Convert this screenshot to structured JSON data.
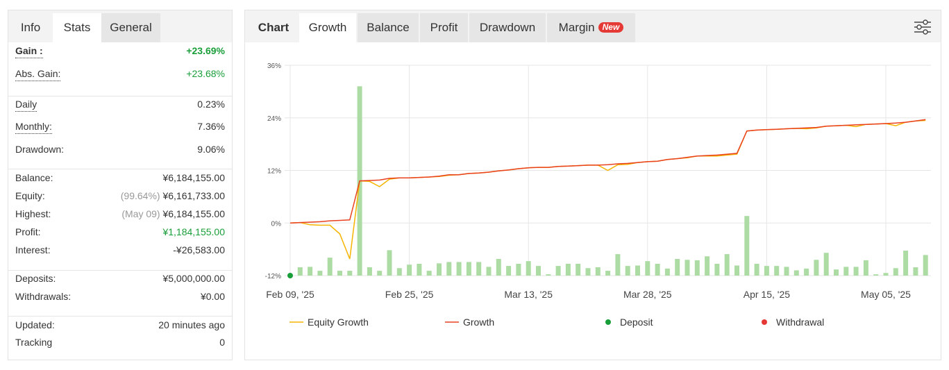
{
  "left_panel": {
    "tabs": [
      "Info",
      "Stats",
      "General"
    ],
    "groups": [
      [
        {
          "label": "Gain :",
          "value": "+23.69%",
          "color": "#1a9e3a"
        },
        {
          "label": "Abs. Gain:",
          "value": "+23.68%",
          "color": "#1a9e3a"
        }
      ],
      [
        {
          "label": "Daily",
          "value": "0.23%"
        },
        {
          "label": "Monthly:",
          "value": "7.36%"
        },
        {
          "label": "Drawdown:",
          "value": "9.06%"
        }
      ],
      [
        {
          "label": "Balance:",
          "value": "¥6,184,155.00"
        },
        {
          "label": "Equity:",
          "note": "(99.64%)",
          "value": "¥6,161,733.00"
        },
        {
          "label": "Highest:",
          "note": "(May 09)",
          "value": "¥6,184,155.00"
        },
        {
          "label": "Profit:",
          "value": "¥1,184,155.00",
          "color": "#1a9e3a"
        },
        {
          "label": "Interest:",
          "value": "-¥26,583.00"
        }
      ],
      [
        {
          "label": "Deposits:",
          "value": "¥5,000,000.00"
        },
        {
          "label": "Withdrawals:",
          "value": "¥0.00"
        }
      ],
      [
        {
          "label": "Updated:",
          "value": "20 minutes ago"
        },
        {
          "label": "Tracking",
          "value": "0"
        }
      ]
    ]
  },
  "right_panel": {
    "tabs": [
      "Chart",
      "Growth",
      "Balance",
      "Profit",
      "Drawdown",
      "Margin"
    ],
    "badge": "New"
  },
  "chart_data": {
    "type": "line",
    "categories": [
      "Feb 09, '25",
      null,
      null,
      null,
      null,
      null,
      null,
      null,
      null,
      null,
      null,
      null,
      "Feb 25, '25",
      null,
      null,
      null,
      null,
      null,
      null,
      null,
      null,
      null,
      null,
      null,
      "Mar 13, '25",
      null,
      null,
      null,
      null,
      null,
      null,
      null,
      null,
      null,
      null,
      null,
      "Mar 28, '25",
      null,
      null,
      null,
      null,
      null,
      null,
      null,
      null,
      null,
      null,
      null,
      "Apr 15, '25",
      null,
      null,
      null,
      null,
      null,
      null,
      null,
      null,
      null,
      null,
      null,
      "May 05, '25",
      null,
      null,
      null,
      null
    ],
    "ylim": [
      -12,
      36
    ],
    "yticks": [
      {
        "value": 36,
        "label": "36%"
      },
      {
        "value": 24,
        "label": "24%"
      },
      {
        "value": 12,
        "label": "12%"
      },
      {
        "value": 0,
        "label": "0%"
      },
      {
        "value": -12,
        "label": "-12%"
      }
    ],
    "grid": true,
    "series": [
      {
        "name": "Equity Growth",
        "color": "#f5b400",
        "values": [
          0.0,
          0.1,
          -0.4,
          -0.5,
          -0.5,
          -2.5,
          -8.2,
          9.6,
          9.5,
          8.3,
          10.0,
          10.3,
          10.3,
          10.4,
          10.5,
          10.6,
          10.9,
          11.0,
          11.3,
          11.4,
          11.6,
          11.9,
          12.1,
          12.4,
          12.6,
          12.7,
          12.7,
          12.9,
          13.0,
          13.1,
          13.2,
          13.2,
          12.0,
          13.3,
          13.4,
          13.8,
          14.0,
          14.1,
          14.5,
          14.7,
          14.9,
          15.3,
          15.3,
          15.3,
          15.5,
          15.7,
          21.0,
          21.2,
          21.3,
          21.4,
          21.5,
          21.6,
          21.5,
          21.7,
          22.1,
          22.2,
          22.3,
          22.0,
          22.5,
          22.6,
          22.7,
          22.2,
          23.0,
          23.3,
          23.4
        ]
      },
      {
        "name": "Growth",
        "color": "#e9411f",
        "values": [
          0.0,
          0.1,
          0.2,
          0.3,
          0.5,
          0.6,
          0.7,
          9.6,
          9.7,
          9.8,
          10.2,
          10.3,
          10.3,
          10.4,
          10.5,
          10.7,
          11.0,
          11.0,
          11.3,
          11.4,
          11.6,
          11.9,
          12.1,
          12.4,
          12.6,
          12.7,
          12.7,
          12.9,
          13.0,
          13.1,
          13.2,
          13.2,
          13.3,
          13.5,
          13.6,
          13.8,
          14.0,
          14.1,
          14.5,
          14.7,
          15.0,
          15.3,
          15.4,
          15.5,
          15.7,
          15.9,
          21.0,
          21.2,
          21.3,
          21.4,
          21.5,
          21.6,
          21.7,
          21.8,
          22.1,
          22.2,
          22.3,
          22.4,
          22.5,
          22.6,
          22.7,
          22.8,
          23.0,
          23.3,
          23.6
        ]
      }
    ],
    "bars": {
      "color": "#acdca4",
      "values": [
        null,
        -10.1,
        -10.0,
        -10.9,
        -7.9,
        -10.9,
        -10.9,
        31.2,
        -10.1,
        -10.9,
        -6.2,
        -10.3,
        -9.5,
        -9.3,
        -10.9,
        -9.2,
        -8.9,
        -8.9,
        -8.9,
        -8.9,
        -10.0,
        -8.2,
        -9.8,
        -9.3,
        -8.7,
        -9.8,
        -11.7,
        -9.8,
        -9.3,
        -9.3,
        -10.3,
        -10.1,
        -10.9,
        -7.1,
        -9.8,
        -9.7,
        -8.7,
        -9.3,
        -10.4,
        -8.2,
        -8.4,
        -8.5,
        -7.6,
        -9.3,
        -7.1,
        -9.7,
        1.6,
        -9.3,
        -9.8,
        -9.8,
        -10.0,
        -10.8,
        -10.4,
        -8.4,
        -6.8,
        -10.6,
        -10.0,
        -10.0,
        -8.5,
        -11.7,
        -11.4,
        -10.3,
        -6.3,
        -10.1,
        -7.3
      ]
    },
    "markers": [
      {
        "name": "Deposit",
        "color": "#1a9e3a",
        "values": [
          -12,
          null,
          null,
          null,
          null,
          null,
          null,
          null,
          null,
          null,
          null,
          null,
          null,
          null,
          null,
          null,
          null,
          null,
          null,
          null,
          null,
          null,
          null,
          null,
          null,
          null,
          null,
          null,
          null,
          null,
          null,
          null,
          null,
          null,
          null,
          null,
          null,
          null,
          null,
          null,
          null,
          null,
          null,
          null,
          null,
          null,
          null,
          null,
          null,
          null,
          null,
          null,
          null,
          null,
          null,
          null,
          null,
          null,
          null,
          null,
          null,
          null,
          null,
          null,
          null
        ]
      },
      {
        "name": "Withdrawal",
        "color": "#e53935",
        "values": [
          null,
          null,
          null,
          null,
          null,
          null,
          null,
          null,
          null,
          null,
          null,
          null,
          null,
          null,
          null,
          null,
          null,
          null,
          null,
          null,
          null,
          null,
          null,
          null,
          null,
          null,
          null,
          null,
          null,
          null,
          null,
          null,
          null,
          null,
          null,
          null,
          null,
          null,
          null,
          null,
          null,
          null,
          null,
          null,
          null,
          null,
          null,
          null,
          null,
          null,
          null,
          null,
          null,
          null,
          null,
          null,
          null,
          null,
          null,
          null,
          null,
          null,
          null,
          null,
          null
        ]
      }
    ]
  }
}
